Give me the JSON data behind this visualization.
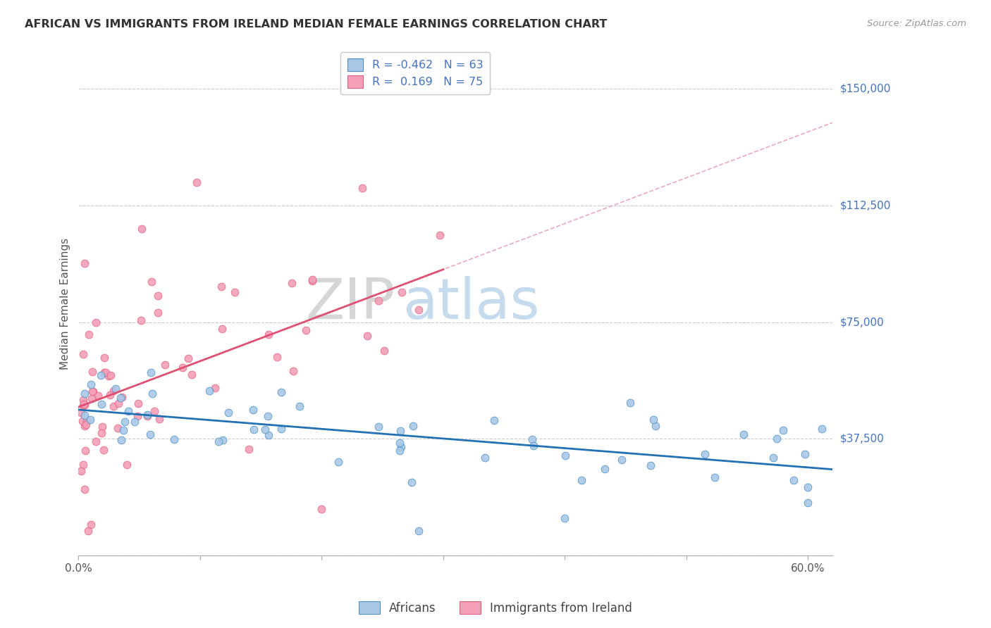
{
  "title": "AFRICAN VS IMMIGRANTS FROM IRELAND MEDIAN FEMALE EARNINGS CORRELATION CHART",
  "source": "Source: ZipAtlas.com",
  "ylabel": "Median Female Earnings",
  "yticks": [
    0,
    37500,
    75000,
    112500,
    150000
  ],
  "ytick_labels": [
    "",
    "$37,500",
    "$75,000",
    "$112,500",
    "$150,000"
  ],
  "xlim": [
    0.0,
    0.62
  ],
  "ylim": [
    0,
    162000
  ],
  "legend_blue_label": "R = -0.462   N = 63",
  "legend_pink_label": "R =  0.169   N = 75",
  "legend_bottom_blue": "Africans",
  "legend_bottom_pink": "Immigrants from Ireland",
  "blue_scatter_color": "#a8c8e8",
  "pink_scatter_color": "#f4a0b8",
  "blue_edge_color": "#5090c0",
  "pink_edge_color": "#e06080",
  "blue_line_color": "#2171b5",
  "pink_line_color": "#e05070",
  "dash_line_color": "#e090a0",
  "watermark_zip": "ZIP",
  "watermark_atlas": "atlas",
  "background_color": "#ffffff",
  "grid_color": "#cccccc",
  "title_color": "#333333",
  "right_tick_color": "#4472c4",
  "legend_text_color": "#4472c4",
  "bottom_legend_color": "#444444"
}
